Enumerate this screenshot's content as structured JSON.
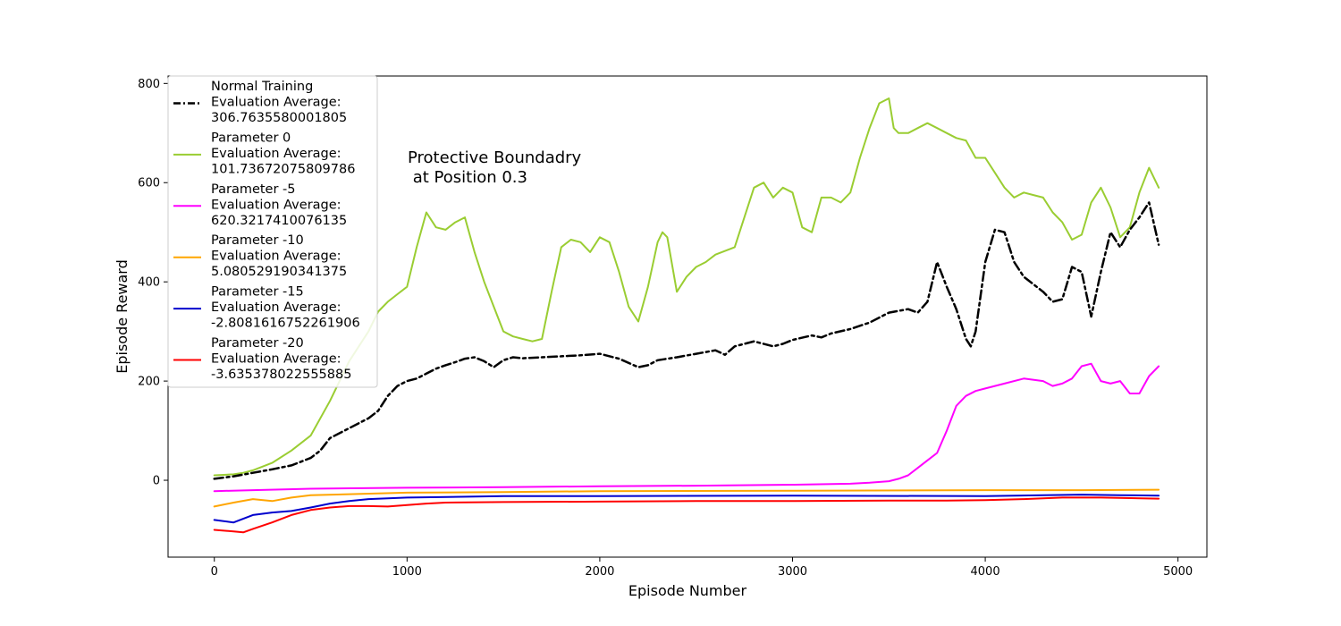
{
  "chart_data": {
    "type": "line",
    "xlabel": "Episode Number",
    "ylabel": "Episode Reward",
    "annotation": [
      "Protective Boundadry",
      " at Position 0.3"
    ],
    "xlim": [
      -240,
      5150
    ],
    "ylim": [
      -155,
      815
    ],
    "xticks": [
      0,
      1000,
      2000,
      3000,
      4000,
      5000
    ],
    "yticks": [
      0,
      200,
      400,
      600,
      800
    ],
    "legend_position": "upper-left",
    "series": [
      {
        "name": "Normal Training",
        "legend_lines": [
          "Normal Training",
          " Evaluation Average:",
          " 306.7635580001805"
        ],
        "color": "#000000",
        "style": "dashdot",
        "x": [
          0,
          100,
          200,
          300,
          400,
          500,
          550,
          600,
          700,
          800,
          850,
          900,
          950,
          1000,
          1050,
          1100,
          1150,
          1200,
          1250,
          1300,
          1350,
          1400,
          1450,
          1500,
          1550,
          1600,
          1700,
          1800,
          1900,
          2000,
          2100,
          2200,
          2250,
          2300,
          2400,
          2500,
          2600,
          2650,
          2700,
          2800,
          2900,
          2950,
          3000,
          3100,
          3150,
          3200,
          3300,
          3400,
          3500,
          3600,
          3650,
          3700,
          3750,
          3800,
          3850,
          3900,
          3925,
          3950,
          4000,
          4050,
          4100,
          4150,
          4200,
          4250,
          4300,
          4350,
          4400,
          4450,
          4500,
          4550,
          4600,
          4650,
          4700,
          4750,
          4800,
          4850,
          4900
        ],
        "values": [
          3,
          8,
          15,
          22,
          30,
          45,
          60,
          85,
          105,
          125,
          140,
          170,
          190,
          200,
          205,
          215,
          225,
          232,
          238,
          245,
          248,
          240,
          228,
          242,
          248,
          246,
          248,
          250,
          252,
          255,
          245,
          228,
          232,
          242,
          248,
          255,
          262,
          253,
          270,
          280,
          270,
          275,
          283,
          292,
          288,
          296,
          305,
          318,
          338,
          345,
          338,
          360,
          440,
          390,
          345,
          285,
          270,
          300,
          440,
          505,
          500,
          440,
          410,
          395,
          380,
          360,
          365,
          430,
          420,
          330,
          420,
          500,
          470,
          505,
          530,
          560,
          475
        ]
      },
      {
        "name": "Parameter 0",
        "legend_lines": [
          "Parameter 0",
          " Evaluation Average:",
          " 101.73672075809786"
        ],
        "color": "#9acd32",
        "style": "solid",
        "x": [
          0,
          100,
          150,
          200,
          300,
          400,
          500,
          600,
          700,
          800,
          850,
          900,
          950,
          1000,
          1050,
          1100,
          1150,
          1200,
          1250,
          1300,
          1350,
          1400,
          1450,
          1500,
          1550,
          1600,
          1650,
          1700,
          1750,
          1800,
          1850,
          1900,
          1950,
          2000,
          2050,
          2100,
          2150,
          2200,
          2250,
          2300,
          2325,
          2350,
          2400,
          2450,
          2500,
          2550,
          2600,
          2700,
          2800,
          2850,
          2900,
          2950,
          3000,
          3050,
          3100,
          3150,
          3200,
          3250,
          3300,
          3350,
          3400,
          3450,
          3500,
          3525,
          3550,
          3600,
          3650,
          3700,
          3750,
          3800,
          3850,
          3900,
          3950,
          4000,
          4050,
          4100,
          4150,
          4200,
          4250,
          4300,
          4350,
          4400,
          4450,
          4500,
          4550,
          4600,
          4650,
          4700,
          4750,
          4800,
          4850,
          4900
        ],
        "values": [
          10,
          12,
          15,
          20,
          35,
          60,
          90,
          160,
          240,
          300,
          340,
          360,
          375,
          390,
          470,
          540,
          510,
          505,
          520,
          530,
          460,
          400,
          350,
          300,
          290,
          285,
          280,
          285,
          380,
          470,
          485,
          480,
          460,
          490,
          480,
          420,
          350,
          320,
          390,
          480,
          500,
          490,
          380,
          410,
          430,
          440,
          455,
          470,
          590,
          600,
          570,
          590,
          580,
          510,
          500,
          570,
          570,
          560,
          580,
          650,
          710,
          760,
          770,
          710,
          700,
          700,
          710,
          720,
          710,
          700,
          690,
          685,
          650,
          650,
          620,
          590,
          570,
          580,
          575,
          570,
          540,
          520,
          485,
          495,
          560,
          590,
          550,
          490,
          510,
          580,
          630,
          590
        ]
      },
      {
        "name": "Parameter -5",
        "legend_lines": [
          "Parameter -5",
          " Evaluation Average:",
          " 620.3217410076135"
        ],
        "color": "#ff00ff",
        "style": "solid",
        "x": [
          0,
          200,
          500,
          1000,
          1500,
          2000,
          2500,
          3000,
          3300,
          3400,
          3500,
          3550,
          3600,
          3650,
          3700,
          3750,
          3800,
          3850,
          3900,
          3950,
          4000,
          4100,
          4200,
          4300,
          4350,
          4400,
          4450,
          4500,
          4550,
          4600,
          4650,
          4700,
          4750,
          4800,
          4850,
          4900
        ],
        "values": [
          -22,
          -20,
          -17,
          -15,
          -14,
          -12,
          -11,
          -9,
          -7,
          -5,
          -2,
          3,
          10,
          25,
          40,
          55,
          100,
          150,
          170,
          180,
          185,
          195,
          205,
          200,
          190,
          195,
          205,
          230,
          235,
          200,
          195,
          200,
          175,
          175,
          210,
          230
        ]
      },
      {
        "name": "Parameter -10",
        "legend_lines": [
          "Parameter -10",
          " Evaluation Average:",
          " 5.080529190341375"
        ],
        "color": "#ffa500",
        "style": "solid",
        "x": [
          0,
          100,
          200,
          300,
          400,
          500,
          700,
          1000,
          1500,
          2000,
          3000,
          4000,
          4500,
          4900
        ],
        "values": [
          -53,
          -45,
          -38,
          -42,
          -35,
          -30,
          -28,
          -25,
          -24,
          -22,
          -21,
          -20,
          -20,
          -19
        ]
      },
      {
        "name": "Parameter -15",
        "legend_lines": [
          "Parameter -15",
          " Evaluation Average:",
          " -2.8081616752261906"
        ],
        "color": "#0000cd",
        "style": "solid",
        "x": [
          0,
          100,
          200,
          300,
          400,
          500,
          600,
          700,
          800,
          1000,
          1500,
          2000,
          3000,
          4000,
          4300,
          4500,
          4700,
          4900
        ],
        "values": [
          -80,
          -85,
          -70,
          -65,
          -62,
          -55,
          -47,
          -42,
          -38,
          -35,
          -32,
          -32,
          -31,
          -32,
          -30,
          -29,
          -30,
          -31
        ]
      },
      {
        "name": "Parameter -20",
        "legend_lines": [
          "Parameter -20",
          " Evaluation Average:",
          " -3.635378022555885"
        ],
        "color": "#ff0000",
        "style": "solid",
        "x": [
          0,
          100,
          150,
          200,
          300,
          400,
          500,
          600,
          700,
          800,
          900,
          1000,
          1100,
          1200,
          1500,
          2000,
          2500,
          3000,
          3500,
          3800,
          4000,
          4200,
          4400,
          4600,
          4900
        ],
        "values": [
          -100,
          -103,
          -105,
          -98,
          -85,
          -70,
          -60,
          -55,
          -52,
          -52,
          -53,
          -50,
          -47,
          -45,
          -44,
          -43,
          -42,
          -42,
          -41,
          -41,
          -40,
          -38,
          -35,
          -35,
          -37
        ]
      }
    ]
  }
}
